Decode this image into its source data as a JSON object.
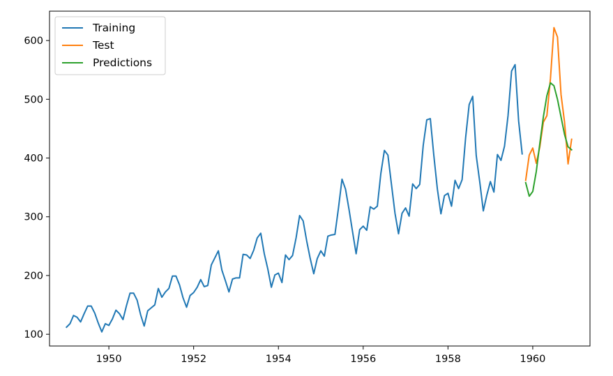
{
  "chart_data": {
    "type": "line",
    "title": "",
    "xlabel": "",
    "ylabel": "",
    "xlim": [
      1948.6,
      1961.35
    ],
    "ylim": [
      80,
      650
    ],
    "xticks": [
      1950,
      1952,
      1954,
      1956,
      1958,
      1960
    ],
    "yticks": [
      100,
      200,
      300,
      400,
      500,
      600
    ],
    "grid": false,
    "legend": {
      "position": "top-left"
    },
    "series": [
      {
        "name": "Training",
        "color": "#1f77b4",
        "start_year": 1949,
        "values": [
          112,
          118,
          132,
          129,
          121,
          135,
          148,
          148,
          136,
          119,
          104,
          118,
          115,
          126,
          141,
          135,
          125,
          149,
          170,
          170,
          158,
          133,
          114,
          140,
          145,
          150,
          178,
          163,
          172,
          178,
          199,
          199,
          184,
          162,
          146,
          166,
          171,
          180,
          193,
          181,
          183,
          218,
          230,
          242,
          209,
          191,
          172,
          194,
          196,
          196,
          236,
          235,
          229,
          243,
          264,
          272,
          237,
          211,
          180,
          201,
          204,
          188,
          235,
          227,
          234,
          264,
          302,
          293,
          259,
          229,
          203,
          229,
          242,
          233,
          267,
          269,
          270,
          315,
          364,
          347,
          312,
          274,
          237,
          278,
          284,
          277,
          317,
          313,
          318,
          374,
          413,
          405,
          355,
          306,
          271,
          306,
          315,
          301,
          356,
          348,
          355,
          422,
          465,
          467,
          404,
          347,
          305,
          336,
          340,
          318,
          362,
          348,
          363,
          435,
          491,
          505,
          404,
          359,
          310,
          337,
          360,
          342,
          406,
          396,
          420,
          472,
          548,
          559,
          463,
          407
        ]
      },
      {
        "name": "Test",
        "color": "#ff7f0e",
        "x": [
          1959.833,
          1959.917,
          1960.0,
          1960.083,
          1960.167,
          1960.25,
          1960.333,
          1960.417,
          1960.5,
          1960.583,
          1960.667,
          1960.75,
          1960.833,
          1960.917
        ],
        "values": [
          362,
          405,
          417,
          391,
          419,
          461,
          472,
          535,
          622,
          606,
          508,
          461,
          390,
          432
        ]
      },
      {
        "name": "Predictions",
        "color": "#2ca02c",
        "x": [
          1959.833,
          1959.917,
          1960.0,
          1960.083,
          1960.167,
          1960.25,
          1960.333,
          1960.417,
          1960.5,
          1960.583,
          1960.667,
          1960.75,
          1960.833,
          1960.917
        ],
        "values": [
          358,
          335,
          343,
          377,
          425,
          470,
          506,
          528,
          523,
          500,
          470,
          440,
          419,
          414
        ]
      }
    ]
  }
}
